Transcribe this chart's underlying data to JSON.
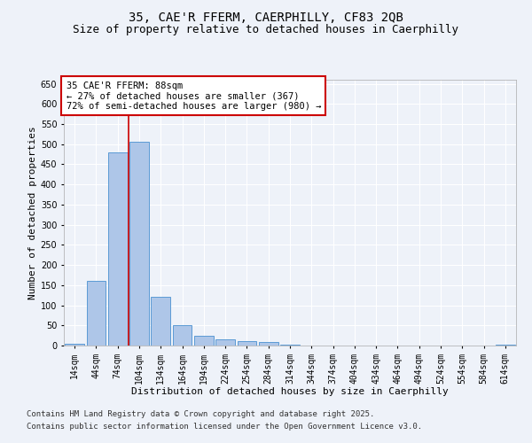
{
  "title_line1": "35, CAE'R FFERM, CAERPHILLY, CF83 2QB",
  "title_line2": "Size of property relative to detached houses in Caerphilly",
  "xlabel": "Distribution of detached houses by size in Caerphilly",
  "ylabel": "Number of detached properties",
  "categories": [
    "14sqm",
    "44sqm",
    "74sqm",
    "104sqm",
    "134sqm",
    "164sqm",
    "194sqm",
    "224sqm",
    "254sqm",
    "284sqm",
    "314sqm",
    "344sqm",
    "374sqm",
    "404sqm",
    "434sqm",
    "464sqm",
    "494sqm",
    "524sqm",
    "554sqm",
    "584sqm",
    "614sqm"
  ],
  "values": [
    5,
    160,
    480,
    507,
    120,
    50,
    25,
    15,
    10,
    8,
    2,
    0,
    0,
    0,
    0,
    0,
    0,
    0,
    0,
    0,
    2
  ],
  "bar_color": "#aec6e8",
  "bar_edge_color": "#5b9bd5",
  "red_line_x": 2.5,
  "ylim": [
    0,
    660
  ],
  "yticks": [
    0,
    50,
    100,
    150,
    200,
    250,
    300,
    350,
    400,
    450,
    500,
    550,
    600,
    650
  ],
  "annotation_text": "35 CAE'R FFERM: 88sqm\n← 27% of detached houses are smaller (367)\n72% of semi-detached houses are larger (980) →",
  "annotation_box_color": "#ffffff",
  "annotation_box_edge": "#cc0000",
  "footer_line1": "Contains HM Land Registry data © Crown copyright and database right 2025.",
  "footer_line2": "Contains public sector information licensed under the Open Government Licence v3.0.",
  "background_color": "#eef2f9",
  "grid_color": "#ffffff",
  "title_fontsize": 10,
  "subtitle_fontsize": 9,
  "axis_label_fontsize": 8,
  "tick_fontsize": 7,
  "annotation_fontsize": 7.5,
  "footer_fontsize": 6.5
}
